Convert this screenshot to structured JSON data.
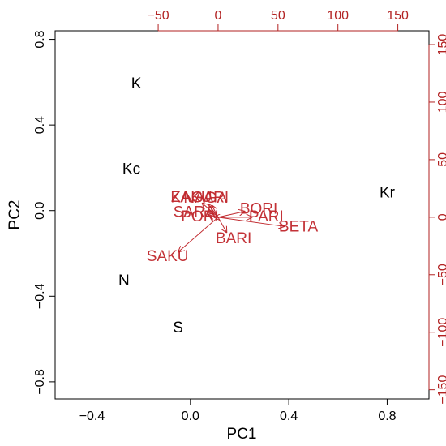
{
  "chart_data": {
    "type": "scatter",
    "subtype": "biplot",
    "title": "",
    "xlabel": "PC1",
    "ylabel": "PC2",
    "xlim": [
      -0.55,
      0.97
    ],
    "ylim": [
      -0.88,
      0.84
    ],
    "x_ticks": [
      -0.4,
      0.0,
      0.4,
      0.8
    ],
    "y_ticks": [
      -0.8,
      -0.4,
      0.0,
      0.4,
      0.8
    ],
    "x_tick_labels": [
      "−0.4",
      "0.0",
      "0.4",
      "0.8"
    ],
    "y_tick_labels": [
      "−0.8",
      "−0.4",
      "0.0",
      "0.4",
      "0.8"
    ],
    "secondary_x_ticks": [
      -50,
      0,
      50,
      100,
      150
    ],
    "secondary_x_tick_labels": [
      "−50",
      "0",
      "50",
      "100",
      "150"
    ],
    "secondary_y_ticks": [
      -150,
      -100,
      -50,
      0,
      50,
      100,
      150
    ],
    "secondary_y_tick_labels": [
      "−150",
      "−100",
      "−50",
      "0",
      "50",
      "100",
      "150"
    ],
    "secondary_xlim": [
      -136,
      176
    ],
    "secondary_ylim": [
      -158,
      162
    ],
    "points": [
      {
        "label": "K",
        "x": -0.22,
        "y": 0.59
      },
      {
        "label": "Kc",
        "x": -0.24,
        "y": 0.19
      },
      {
        "label": "Kr",
        "x": 0.8,
        "y": 0.08
      },
      {
        "label": "N",
        "x": -0.27,
        "y": -0.33
      },
      {
        "label": "S",
        "x": -0.05,
        "y": -0.55
      }
    ],
    "loadings": [
      {
        "label": "ZAKU",
        "x": -13,
        "y": 12
      },
      {
        "label": "KAGARI",
        "x": -8,
        "y": 11
      },
      {
        "label": "NAGA",
        "x": -5,
        "y": 10
      },
      {
        "label": "SARA",
        "x": -8,
        "y": 2
      },
      {
        "label": "PORI",
        "x": -3,
        "y": 0
      },
      {
        "label": "BORI",
        "x": 22,
        "y": 5
      },
      {
        "label": "PARI",
        "x": 28,
        "y": 0
      },
      {
        "label": "BARI",
        "x": 7,
        "y": -13
      },
      {
        "label": "BETA",
        "x": 55,
        "y": -8
      },
      {
        "label": "SAKU",
        "x": -33,
        "y": -30
      }
    ],
    "grid": false,
    "point_color": "#000000",
    "loading_color": "#c0282d"
  }
}
